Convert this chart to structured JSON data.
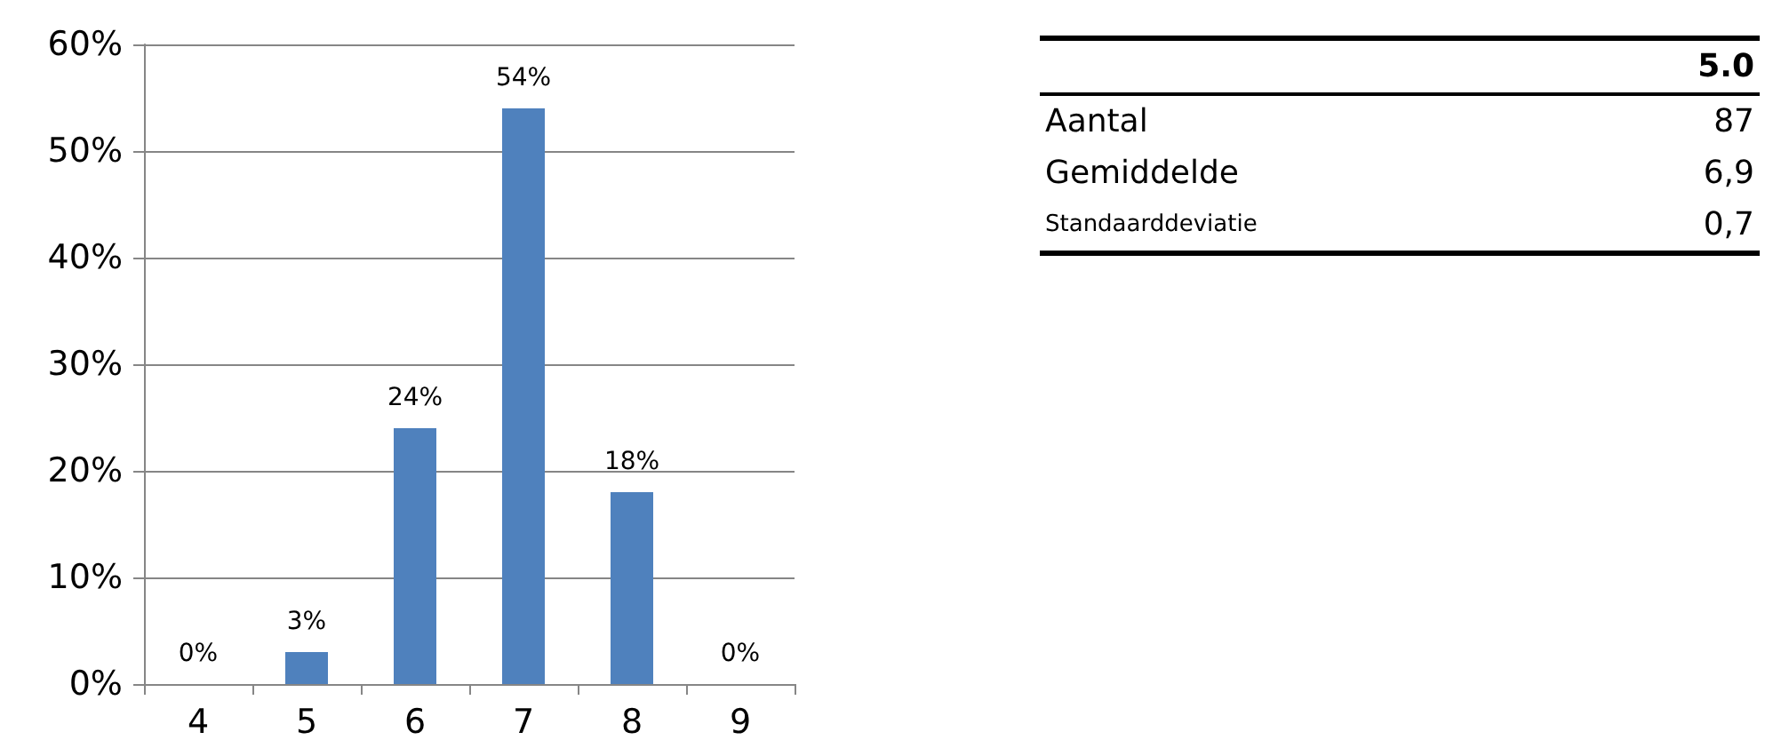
{
  "chart_data": [
    {
      "type": "bar",
      "categories": [
        "4",
        "5",
        "6",
        "7",
        "8",
        "9"
      ],
      "values": [
        0,
        3,
        24,
        54,
        18,
        0
      ],
      "color": "#4f81bd",
      "value_labels": [
        "0%",
        "3%",
        "24%",
        "54%",
        "18%",
        "0%"
      ],
      "ylim": [
        0,
        60
      ],
      "yticks": [
        {
          "value": 0,
          "label": "0%"
        },
        {
          "value": 10,
          "label": "10%"
        },
        {
          "value": 20,
          "label": "20%"
        },
        {
          "value": 30,
          "label": "30%"
        },
        {
          "value": 40,
          "label": "40%"
        },
        {
          "value": 50,
          "label": "50%"
        },
        {
          "value": 60,
          "label": "60%"
        }
      ],
      "grid": "y"
    },
    {
      "type": "other",
      "title": "5.0",
      "categories": [
        "Aantal",
        "Gemiddelde",
        "Standaarddeviatie"
      ],
      "value_labels": [
        "87",
        "6,9",
        "0,7"
      ]
    }
  ]
}
